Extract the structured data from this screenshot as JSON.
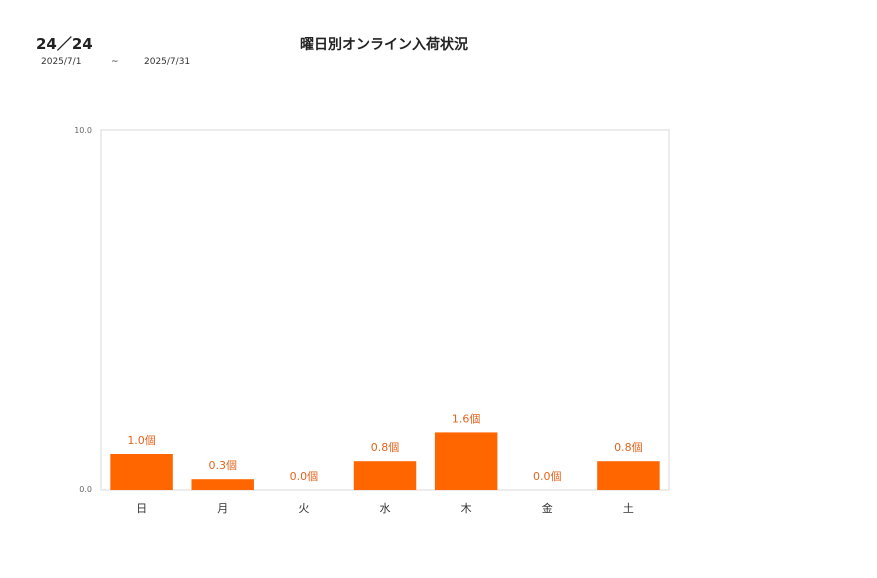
{
  "header": {
    "code": "24／24",
    "date_from": "2025/7/1",
    "date_sep": "~",
    "date_to": "2025/7/31"
  },
  "chart_data": {
    "type": "bar",
    "title": "曜日別オンライン入荷状況",
    "categories": [
      "日",
      "月",
      "火",
      "水",
      "木",
      "金",
      "土"
    ],
    "values": [
      1.0,
      0.3,
      0.0,
      0.8,
      1.6,
      0.0,
      0.8
    ],
    "value_labels": [
      "1.0個",
      "0.3個",
      "0.0個",
      "0.8個",
      "1.6個",
      "0.0個",
      "0.8個"
    ],
    "ylim": [
      0,
      10
    ],
    "y_ticks": [
      "0.0",
      "10.0"
    ],
    "xlabel": "",
    "ylabel": "",
    "grid": false,
    "colors": {
      "bar": "#ff6600",
      "label": "#e0651e"
    }
  }
}
